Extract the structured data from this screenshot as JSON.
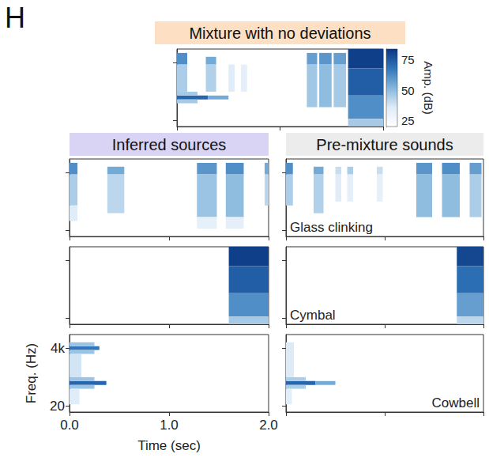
{
  "figure_label": "H",
  "column_titles": [
    "Inferred sources",
    "Pre-mixture sounds"
  ],
  "chart_data": [
    {
      "type": "heatmap",
      "title": "Mixture with no deviations",
      "xlim": [
        0,
        2
      ],
      "xticks": [
        {
          "value": 0,
          "label": "0.0"
        },
        {
          "value": 1,
          "label": "1.0"
        },
        {
          "value": 2,
          "label": "2.0"
        }
      ],
      "y_categories": [
        null,
        "20",
        null,
        null,
        null,
        null,
        null,
        null,
        null,
        null,
        null,
        null,
        null,
        null,
        null,
        null,
        "4k",
        null,
        null,
        null
      ],
      "tick_labels": false,
      "color_range": [
        20,
        84
      ],
      "color_ticks": [
        25,
        50,
        75
      ],
      "color_label": "Amp. (dB)",
      "cells": [
        {
          "time": [
            0.0,
            0.1
          ],
          "channels": [
            16,
            18
          ],
          "amp": 62
        },
        {
          "time": [
            0.0,
            0.1
          ],
          "channels": [
            9,
            15
          ],
          "amp": 45
        },
        {
          "time": [
            0.28,
            0.38
          ],
          "channels": [
            16,
            17
          ],
          "amp": 55
        },
        {
          "time": [
            0.28,
            0.38
          ],
          "channels": [
            9,
            15
          ],
          "amp": 44
        },
        {
          "time": [
            0.5,
            0.56
          ],
          "channels": [
            9,
            15
          ],
          "amp": 35
        },
        {
          "time": [
            0.62,
            0.68
          ],
          "channels": [
            9,
            15
          ],
          "amp": 33
        },
        {
          "time": [
            1.26,
            1.36
          ],
          "channels": [
            16,
            18
          ],
          "amp": 58
        },
        {
          "time": [
            1.26,
            1.36
          ],
          "channels": [
            5,
            15
          ],
          "amp": 47
        },
        {
          "time": [
            1.38,
            1.5
          ],
          "channels": [
            16,
            18
          ],
          "amp": 60
        },
        {
          "time": [
            1.38,
            1.5
          ],
          "channels": [
            5,
            15
          ],
          "amp": 50
        },
        {
          "time": [
            1.52,
            1.64
          ],
          "channels": [
            16,
            18
          ],
          "amp": 58
        },
        {
          "time": [
            1.52,
            1.64
          ],
          "channels": [
            5,
            15
          ],
          "amp": 46
        },
        {
          "time": [
            1.66,
            2.0
          ],
          "channels": [
            15,
            19
          ],
          "amp": 82
        },
        {
          "time": [
            1.66,
            2.0
          ],
          "channels": [
            8,
            14
          ],
          "amp": 74
        },
        {
          "time": [
            1.66,
            2.0
          ],
          "channels": [
            2,
            7
          ],
          "amp": 62
        },
        {
          "time": [
            1.66,
            2.0
          ],
          "channels": [
            0,
            1
          ],
          "amp": 46
        },
        {
          "time": [
            0.0,
            0.3
          ],
          "channels": [
            7,
            7
          ],
          "amp": 72
        },
        {
          "time": [
            0.3,
            0.5
          ],
          "channels": [
            7,
            7
          ],
          "amp": 55
        },
        {
          "time": [
            0.0,
            0.2
          ],
          "channels": [
            6,
            6
          ],
          "amp": 46
        },
        {
          "time": [
            0.0,
            0.2
          ],
          "channels": [
            8,
            8
          ],
          "amp": 46
        }
      ]
    },
    {
      "type": "heatmap",
      "xlim": [
        0,
        2
      ],
      "xticks": [
        {
          "value": 0,
          "label": "0.0"
        },
        {
          "value": 1,
          "label": "1.0"
        },
        {
          "value": 2,
          "label": "2.0"
        }
      ],
      "y_categories": [
        null,
        "20",
        null,
        null,
        null,
        null,
        null,
        null,
        null,
        null,
        null,
        null,
        null,
        null,
        null,
        null,
        "4k",
        null,
        null,
        null
      ],
      "tick_labels": false,
      "cells": [
        {
          "time": [
            0.0,
            0.08
          ],
          "channels": [
            16,
            18
          ],
          "amp": 62
        },
        {
          "time": [
            0.0,
            0.08
          ],
          "channels": [
            8,
            15
          ],
          "amp": 45
        },
        {
          "time": [
            0.0,
            0.08
          ],
          "channels": [
            4,
            7
          ],
          "amp": 35
        },
        {
          "time": [
            0.38,
            0.55
          ],
          "channels": [
            16,
            17
          ],
          "amp": 55
        },
        {
          "time": [
            0.38,
            0.55
          ],
          "channels": [
            6,
            15
          ],
          "amp": 42
        },
        {
          "time": [
            1.28,
            1.48
          ],
          "channels": [
            16,
            18
          ],
          "amp": 60
        },
        {
          "time": [
            1.28,
            1.48
          ],
          "channels": [
            5,
            15
          ],
          "amp": 48
        },
        {
          "time": [
            1.28,
            1.48
          ],
          "channels": [
            2,
            4
          ],
          "amp": 32
        },
        {
          "time": [
            1.57,
            1.75
          ],
          "channels": [
            16,
            18
          ],
          "amp": 62
        },
        {
          "time": [
            1.57,
            1.75
          ],
          "channels": [
            5,
            15
          ],
          "amp": 50
        },
        {
          "time": [
            1.57,
            1.75
          ],
          "channels": [
            2,
            4
          ],
          "amp": 33
        },
        {
          "time": [
            1.96,
            2.0
          ],
          "channels": [
            16,
            18
          ],
          "amp": 55
        },
        {
          "time": [
            1.96,
            2.0
          ],
          "channels": [
            8,
            15
          ],
          "amp": 42
        }
      ]
    },
    {
      "type": "heatmap",
      "label": "Glass clinking",
      "xlim": [
        0,
        2
      ],
      "xticks": [
        {
          "value": 0,
          "label": "0.0"
        },
        {
          "value": 1,
          "label": "1.0"
        },
        {
          "value": 2,
          "label": "2.0"
        }
      ],
      "y_categories": [
        null,
        "20",
        null,
        null,
        null,
        null,
        null,
        null,
        null,
        null,
        null,
        null,
        null,
        null,
        null,
        null,
        "4k",
        null,
        null,
        null
      ],
      "tick_labels": false,
      "cells": [
        {
          "time": [
            0.0,
            0.07
          ],
          "channels": [
            16,
            18
          ],
          "amp": 62
        },
        {
          "time": [
            0.0,
            0.07
          ],
          "channels": [
            8,
            15
          ],
          "amp": 45
        },
        {
          "time": [
            0.28,
            0.38
          ],
          "channels": [
            16,
            17
          ],
          "amp": 55
        },
        {
          "time": [
            0.28,
            0.38
          ],
          "channels": [
            6,
            15
          ],
          "amp": 44
        },
        {
          "time": [
            0.5,
            0.56
          ],
          "channels": [
            16,
            17
          ],
          "amp": 40
        },
        {
          "time": [
            0.5,
            0.56
          ],
          "channels": [
            9,
            15
          ],
          "amp": 35
        },
        {
          "time": [
            0.62,
            0.68
          ],
          "channels": [
            16,
            17
          ],
          "amp": 45
        },
        {
          "time": [
            0.62,
            0.68
          ],
          "channels": [
            9,
            15
          ],
          "amp": 33
        },
        {
          "time": [
            0.92,
            0.98
          ],
          "channels": [
            16,
            17
          ],
          "amp": 40
        },
        {
          "time": [
            0.92,
            0.98
          ],
          "channels": [
            9,
            15
          ],
          "amp": 32
        },
        {
          "time": [
            1.32,
            1.48
          ],
          "channels": [
            16,
            18
          ],
          "amp": 60
        },
        {
          "time": [
            1.32,
            1.48
          ],
          "channels": [
            5,
            15
          ],
          "amp": 50
        },
        {
          "time": [
            1.58,
            1.76
          ],
          "channels": [
            16,
            18
          ],
          "amp": 62
        },
        {
          "time": [
            1.58,
            1.76
          ],
          "channels": [
            5,
            15
          ],
          "amp": 50
        },
        {
          "time": [
            1.86,
            1.98
          ],
          "channels": [
            16,
            18
          ],
          "amp": 58
        },
        {
          "time": [
            1.86,
            1.98
          ],
          "channels": [
            5,
            15
          ],
          "amp": 45
        }
      ]
    },
    {
      "type": "heatmap",
      "xlim": [
        0,
        2
      ],
      "xticks": [
        {
          "value": 0,
          "label": "0.0"
        },
        {
          "value": 1,
          "label": "1.0"
        },
        {
          "value": 2,
          "label": "2.0"
        }
      ],
      "y_categories": [
        null,
        "20",
        null,
        null,
        null,
        null,
        null,
        null,
        null,
        null,
        null,
        null,
        null,
        null,
        null,
        null,
        "4k",
        null,
        null,
        null
      ],
      "tick_labels": false,
      "cells": [
        {
          "time": [
            1.6,
            2.0
          ],
          "channels": [
            15,
            19
          ],
          "amp": 82
        },
        {
          "time": [
            1.6,
            2.0
          ],
          "channels": [
            8,
            14
          ],
          "amp": 74
        },
        {
          "time": [
            1.6,
            2.0
          ],
          "channels": [
            2,
            7
          ],
          "amp": 62
        },
        {
          "time": [
            1.6,
            2.0
          ],
          "channels": [
            0,
            1
          ],
          "amp": 46
        }
      ]
    },
    {
      "type": "heatmap",
      "label": "Cymbal",
      "xlim": [
        0,
        2
      ],
      "xticks": [
        {
          "value": 0,
          "label": "0.0"
        },
        {
          "value": 1,
          "label": "1.0"
        },
        {
          "value": 2,
          "label": "2.0"
        }
      ],
      "y_categories": [
        null,
        "20",
        null,
        null,
        null,
        null,
        null,
        null,
        null,
        null,
        null,
        null,
        null,
        null,
        null,
        null,
        "4k",
        null,
        null,
        null
      ],
      "tick_labels": false,
      "cells": [
        {
          "time": [
            1.73,
            2.0
          ],
          "channels": [
            15,
            19
          ],
          "amp": 80
        },
        {
          "time": [
            1.73,
            2.0
          ],
          "channels": [
            8,
            14
          ],
          "amp": 70
        },
        {
          "time": [
            1.73,
            2.0
          ],
          "channels": [
            2,
            7
          ],
          "amp": 58
        },
        {
          "time": [
            1.73,
            2.0
          ],
          "channels": [
            0,
            1
          ],
          "amp": 42
        }
      ]
    },
    {
      "type": "heatmap",
      "x_label": "Time (sec)",
      "y_label": "Freq. (Hz)",
      "xlim": [
        0,
        2
      ],
      "xticks": [
        {
          "value": 0,
          "label": "0.0"
        },
        {
          "value": 1,
          "label": "1.0"
        },
        {
          "value": 2,
          "label": "2.0"
        }
      ],
      "y_categories": [
        null,
        "20",
        null,
        null,
        null,
        null,
        null,
        null,
        null,
        null,
        null,
        null,
        null,
        null,
        null,
        null,
        "4k",
        null,
        null,
        null
      ],
      "cells": [
        {
          "time": [
            0.0,
            0.3
          ],
          "channels": [
            16,
            16
          ],
          "amp": 68
        },
        {
          "time": [
            0.0,
            0.25
          ],
          "channels": [
            15,
            15
          ],
          "amp": 48
        },
        {
          "time": [
            0.0,
            0.25
          ],
          "channels": [
            17,
            17
          ],
          "amp": 48
        },
        {
          "time": [
            0.0,
            0.37
          ],
          "channels": [
            7,
            7
          ],
          "amp": 72
        },
        {
          "time": [
            0.0,
            0.25
          ],
          "channels": [
            6,
            6
          ],
          "amp": 48
        },
        {
          "time": [
            0.0,
            0.25
          ],
          "channels": [
            8,
            8
          ],
          "amp": 48
        },
        {
          "time": [
            0.0,
            0.12
          ],
          "channels": [
            9,
            14
          ],
          "amp": 38
        },
        {
          "time": [
            0.0,
            0.1
          ],
          "channels": [
            2,
            5
          ],
          "amp": 35
        }
      ]
    },
    {
      "type": "heatmap",
      "label": "Cowbell",
      "xlim": [
        0,
        2
      ],
      "xticks": [
        {
          "value": 0,
          "label": "0.0"
        },
        {
          "value": 1,
          "label": "1.0"
        },
        {
          "value": 2,
          "label": "2.0"
        }
      ],
      "y_categories": [
        null,
        "20",
        null,
        null,
        null,
        null,
        null,
        null,
        null,
        null,
        null,
        null,
        null,
        null,
        null,
        null,
        "4k",
        null,
        null,
        null
      ],
      "tick_labels": false,
      "cells": [
        {
          "time": [
            0.0,
            0.3
          ],
          "channels": [
            7,
            7
          ],
          "amp": 72
        },
        {
          "time": [
            0.3,
            0.5
          ],
          "channels": [
            7,
            7
          ],
          "amp": 55
        },
        {
          "time": [
            0.0,
            0.2
          ],
          "channels": [
            6,
            6
          ],
          "amp": 45
        },
        {
          "time": [
            0.0,
            0.2
          ],
          "channels": [
            8,
            8
          ],
          "amp": 45
        },
        {
          "time": [
            0.0,
            0.08
          ],
          "channels": [
            9,
            17
          ],
          "amp": 36
        },
        {
          "time": [
            0.0,
            0.06
          ],
          "channels": [
            2,
            5
          ],
          "amp": 34
        }
      ]
    }
  ]
}
